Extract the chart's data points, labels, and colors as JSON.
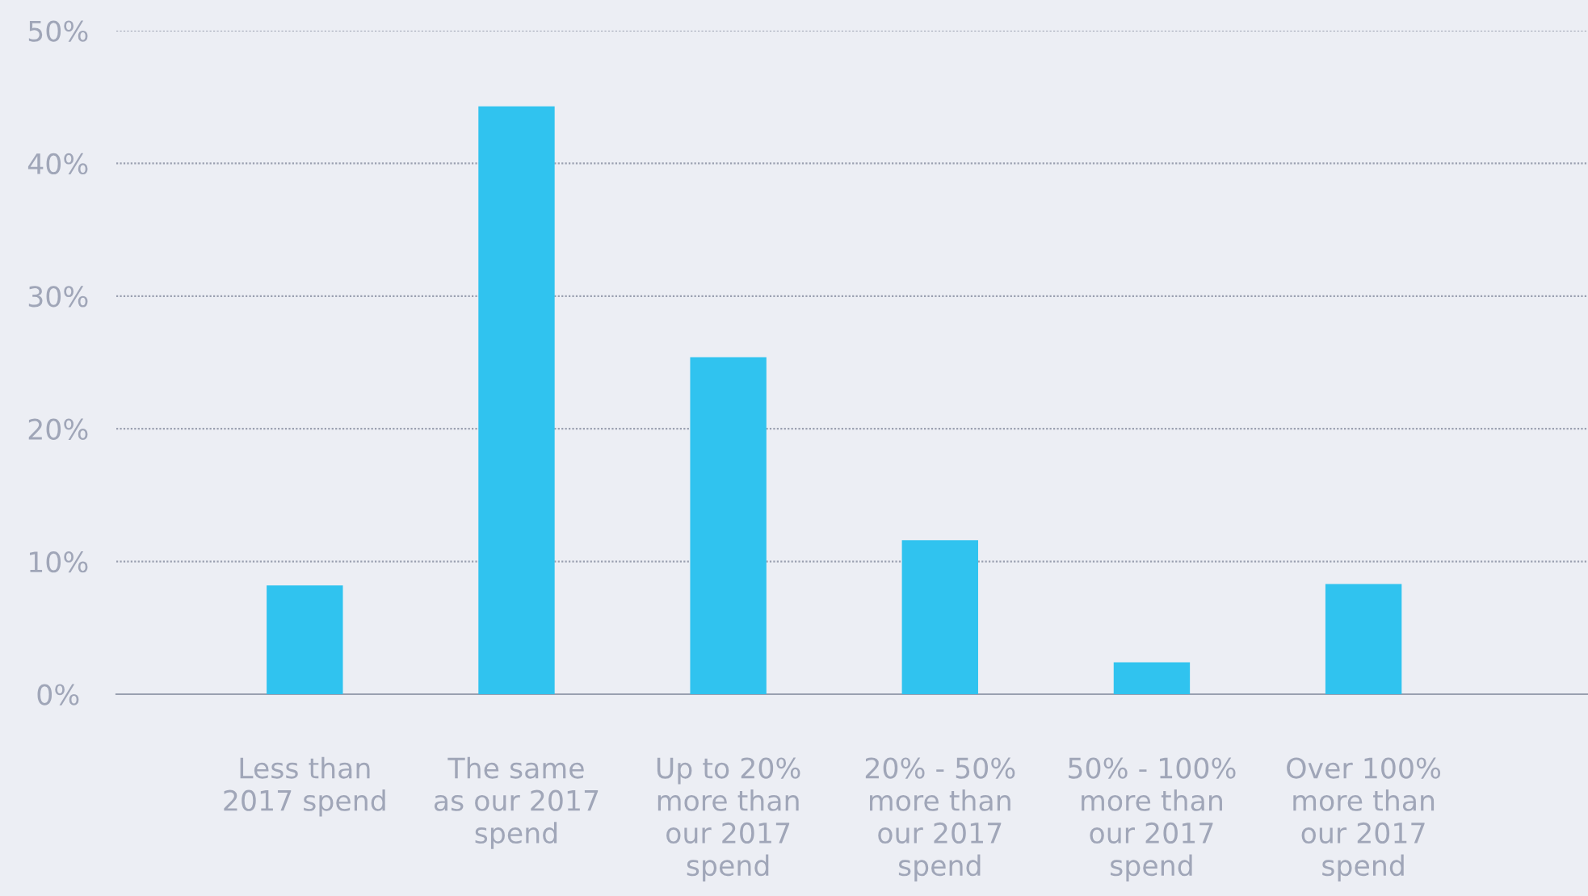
{
  "chart_data": {
    "type": "bar",
    "categories": [
      "Less than\n2017 spend",
      "The same\nas our 2017\nspend",
      "Up to 20%\nmore than\nour 2017\nspend",
      "20% - 50%\nmore than\nour 2017\nspend",
      "50% - 100%\nmore than\nour 2017\nspend",
      "Over 100%\nmore than\nour 2017\nspend"
    ],
    "values": [
      8.2,
      44.3,
      25.4,
      11.6,
      2.4,
      8.3
    ],
    "color": "#30c3ef",
    "ylim": [
      0,
      50
    ],
    "yticks": [
      {
        "value": 0,
        "label": "0%"
      },
      {
        "value": 10,
        "label": "10%"
      },
      {
        "value": 20,
        "label": "20%"
      },
      {
        "value": 30,
        "label": "30%"
      },
      {
        "value": 40,
        "label": "40%"
      },
      {
        "value": 50,
        "label": "50%"
      }
    ],
    "grid": "y"
  }
}
